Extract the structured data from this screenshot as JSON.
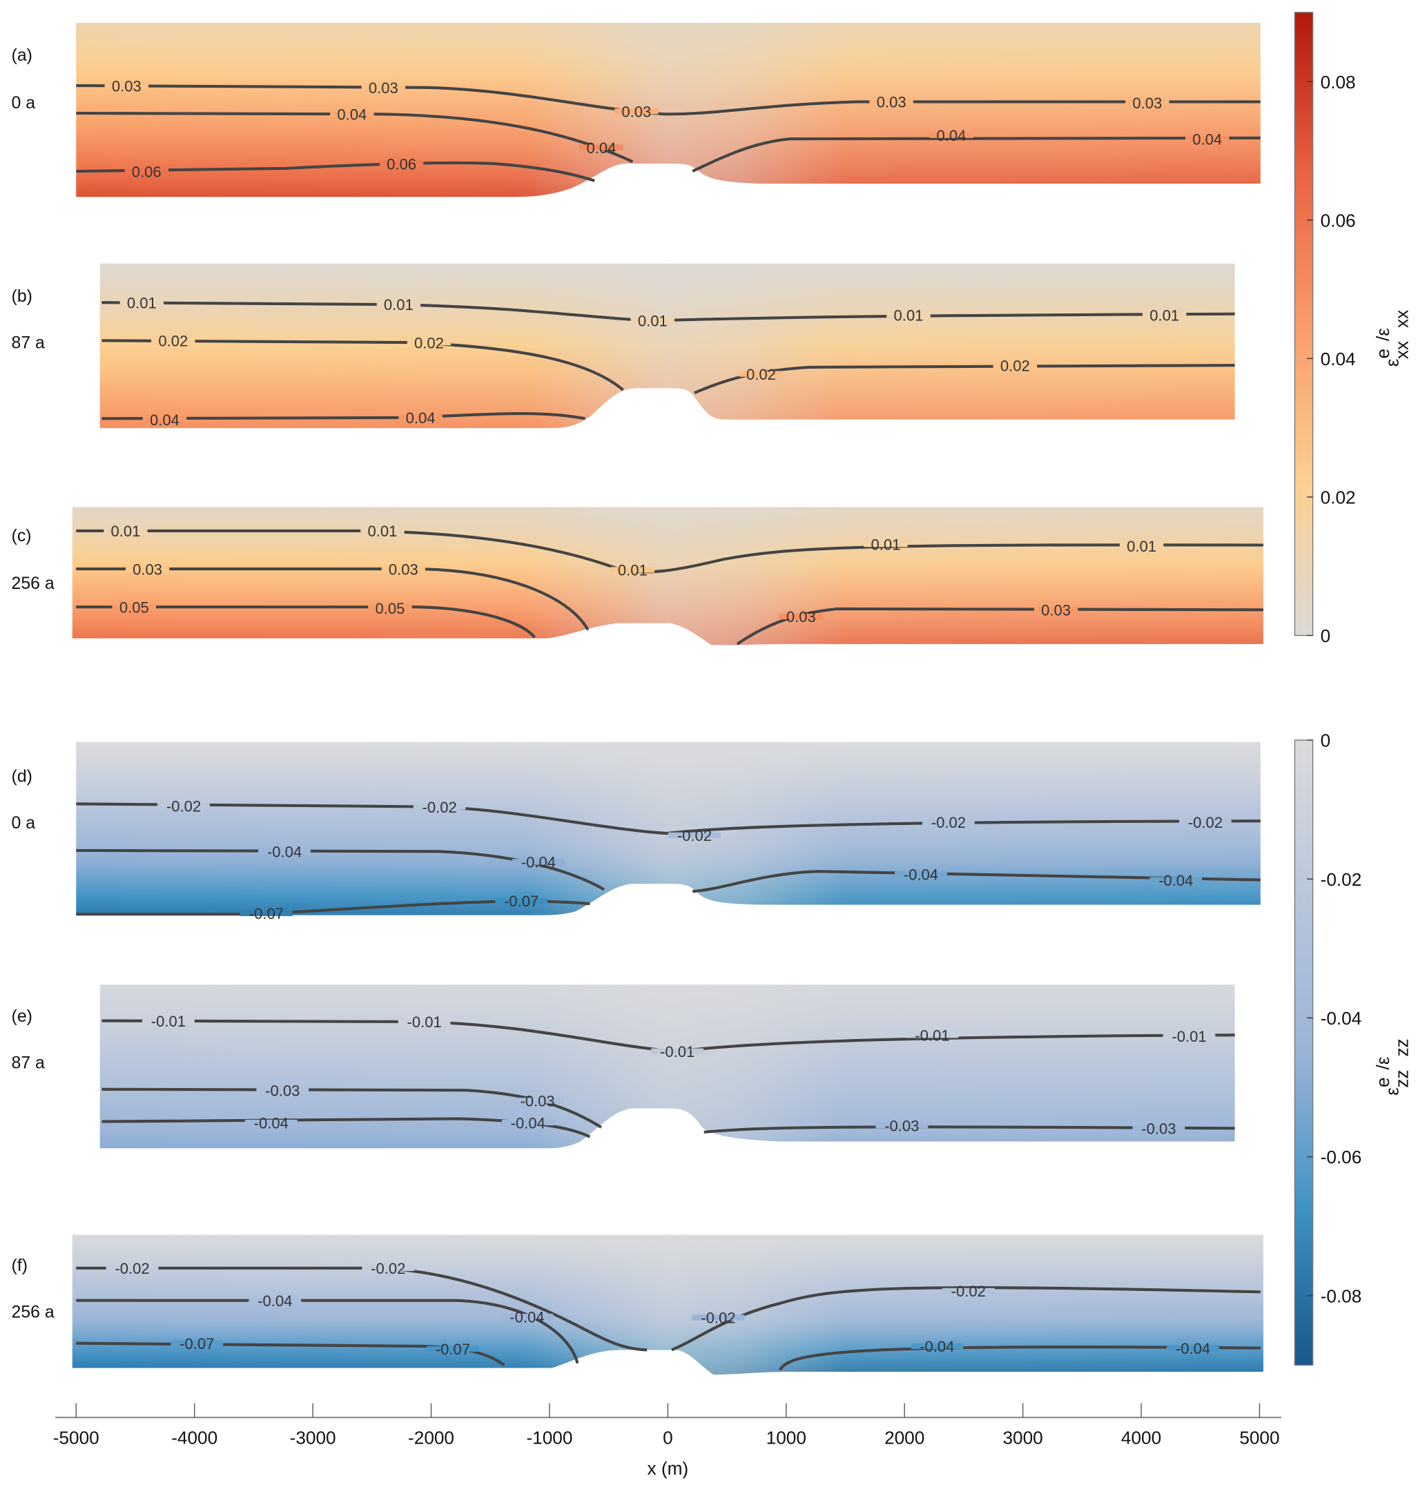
{
  "chart_data": {
    "type": "heatmap",
    "xlabel": "x (m)",
    "xlim": [
      -5000,
      5000
    ],
    "xticks": [
      "-5000",
      "-4000",
      "-3000",
      "-2000",
      "-1000",
      "0",
      "1000",
      "2000",
      "3000",
      "4000",
      "5000"
    ],
    "grid": false,
    "colorbars": [
      {
        "label_main": "ε",
        "label_sup": "e",
        "label_sub": "xx",
        "label_tail": "/ε",
        "label_tail_sub": "xx",
        "range": [
          0,
          0.09
        ],
        "ticks": [
          "0",
          "0.02",
          "0.04",
          "0.06",
          "0.08"
        ],
        "tick_values": [
          0,
          0.02,
          0.04,
          0.06,
          0.08
        ],
        "colors": [
          "#dcd9d6",
          "#fdcf8e",
          "#f99b68",
          "#e8613f",
          "#b3170e"
        ]
      },
      {
        "label_main": "ε",
        "label_sup": "e",
        "label_sub": "zz",
        "label_tail": "/ε",
        "label_tail_sub": "zz",
        "range": [
          -0.09,
          0
        ],
        "ticks": [
          "0",
          "-0.02",
          "-0.04",
          "-0.06",
          "-0.08"
        ],
        "tick_values": [
          0,
          -0.02,
          -0.04,
          -0.06,
          -0.08
        ],
        "colors": [
          "#dcdcdd",
          "#b8c6dc",
          "#9ab4d8",
          "#3e92c5",
          "#17598e"
        ]
      }
    ],
    "panels": [
      {
        "tag": "(a)",
        "time": "0 a",
        "field": "xx",
        "contours": [
          "0.03",
          "0.04",
          "0.06"
        ]
      },
      {
        "tag": "(b)",
        "time": "87 a",
        "field": "xx",
        "contours": [
          "0.01",
          "0.02",
          "0.04"
        ]
      },
      {
        "tag": "(c)",
        "time": "256 a",
        "field": "xx",
        "contours": [
          "0.01",
          "0.03",
          "0.05"
        ]
      },
      {
        "tag": "(d)",
        "time": "0 a",
        "field": "zz",
        "contours": [
          "-0.02",
          "-0.04",
          "-0.07"
        ]
      },
      {
        "tag": "(e)",
        "time": "87 a",
        "field": "zz",
        "contours": [
          "-0.01",
          "-0.03",
          "-0.04"
        ]
      },
      {
        "tag": "(f)",
        "time": "256 a",
        "field": "zz",
        "contours": [
          "-0.02",
          "-0.04",
          "-0.07"
        ]
      }
    ]
  }
}
